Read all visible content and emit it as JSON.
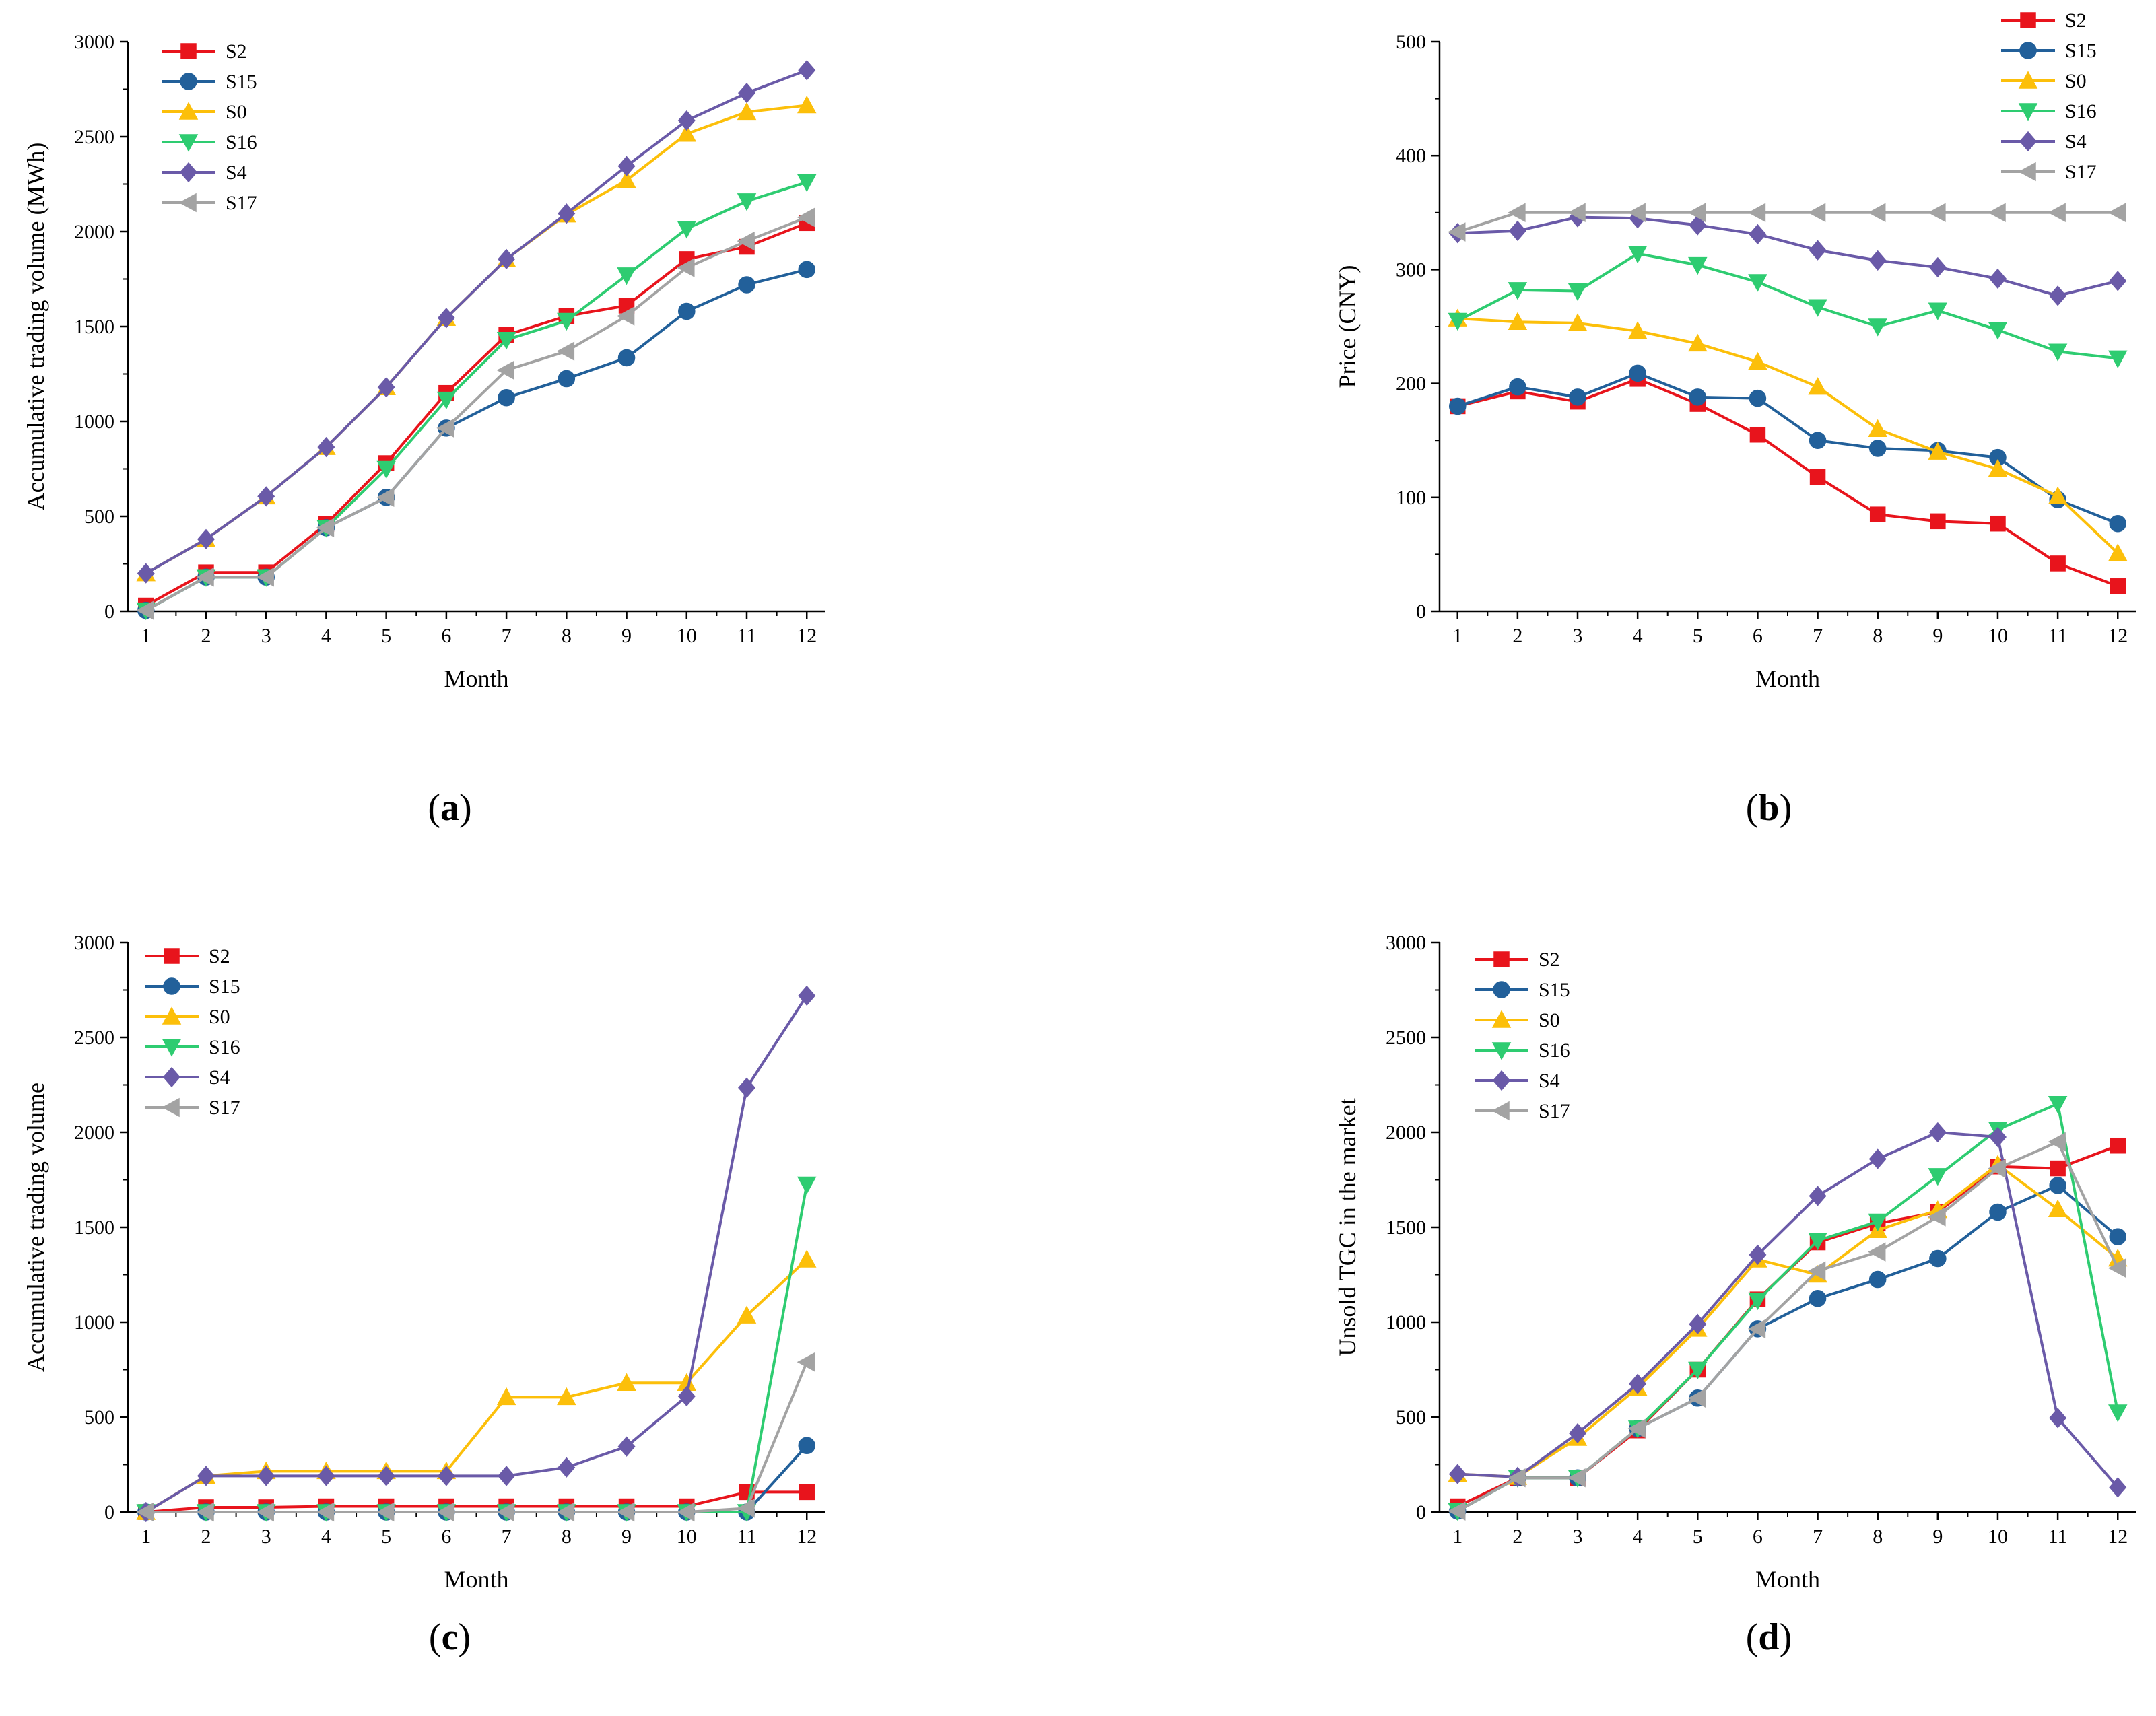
{
  "chart_data": [
    {
      "id": "a",
      "panel_label": "a",
      "type": "line",
      "xlabel": "Month",
      "ylabel": "Accumulative trading volume (MWh)",
      "ylim": [
        0,
        3000
      ],
      "yticks": [
        0,
        500,
        1000,
        1500,
        2000,
        2500,
        3000
      ],
      "x": [
        1,
        2,
        3,
        4,
        5,
        6,
        7,
        8,
        9,
        10,
        11,
        12
      ],
      "xticks": [
        "1",
        "2",
        "3",
        "4",
        "5",
        "6",
        "7",
        "8",
        "9",
        "10",
        "11",
        "12"
      ],
      "legend_position": "top-left",
      "series": [
        {
          "name": "S2",
          "color": "#e8141c",
          "marker": "square",
          "values": [
            30,
            205,
            205,
            460,
            780,
            1150,
            1455,
            1555,
            1610,
            1855,
            1920,
            2045
          ]
        },
        {
          "name": "S15",
          "color": "#22609a",
          "marker": "circle",
          "values": [
            5,
            180,
            180,
            440,
            600,
            965,
            1125,
            1225,
            1335,
            1580,
            1720,
            1800
          ]
        },
        {
          "name": "S0",
          "color": "#fcbf0a",
          "marker": "triangle-up",
          "values": [
            200,
            380,
            605,
            865,
            1180,
            1545,
            1855,
            2090,
            2270,
            2515,
            2630,
            2665
          ]
        },
        {
          "name": "S16",
          "color": "#2ecc71",
          "marker": "triangle-down",
          "values": [
            5,
            180,
            180,
            440,
            750,
            1115,
            1430,
            1530,
            1770,
            2015,
            2160,
            2260
          ]
        },
        {
          "name": "S4",
          "color": "#6a5aa8",
          "marker": "diamond",
          "values": [
            200,
            380,
            605,
            865,
            1180,
            1545,
            1855,
            2095,
            2345,
            2585,
            2730,
            2850
          ]
        },
        {
          "name": "S17",
          "color": "#a3a3a3",
          "marker": "triangle-left",
          "values": [
            5,
            180,
            180,
            440,
            600,
            965,
            1270,
            1370,
            1555,
            1810,
            1950,
            2075
          ]
        }
      ]
    },
    {
      "id": "b",
      "panel_label": "b",
      "type": "line",
      "xlabel": "Month",
      "ylabel": "Price (CNY)",
      "ylim": [
        0,
        500
      ],
      "yticks": [
        0,
        100,
        200,
        300,
        400,
        500
      ],
      "x": [
        1,
        2,
        3,
        4,
        5,
        6,
        7,
        8,
        9,
        10,
        11,
        12
      ],
      "xticks": [
        "1",
        "2",
        "3",
        "4",
        "5",
        "6",
        "7",
        "8",
        "9",
        "10",
        "11",
        "12"
      ],
      "legend_position": "top-right",
      "series": [
        {
          "name": "S2",
          "color": "#e8141c",
          "marker": "square",
          "values": [
            180,
            193,
            184,
            204,
            182,
            155,
            118,
            85,
            79,
            77,
            42,
            22
          ]
        },
        {
          "name": "S15",
          "color": "#22609a",
          "marker": "circle",
          "values": [
            180,
            197,
            188,
            209,
            188,
            187,
            150,
            143,
            141,
            135,
            98,
            77
          ]
        },
        {
          "name": "S0",
          "color": "#fcbf0a",
          "marker": "triangle-up",
          "values": [
            257,
            254,
            253,
            246,
            235,
            219,
            197,
            160,
            140,
            125,
            101,
            51
          ]
        },
        {
          "name": "S16",
          "color": "#2ecc71",
          "marker": "triangle-down",
          "values": [
            255,
            282,
            281,
            314,
            304,
            289,
            267,
            250,
            264,
            247,
            228,
            222
          ]
        },
        {
          "name": "S4",
          "color": "#6a5aa8",
          "marker": "diamond",
          "values": [
            332,
            334,
            346,
            345,
            339,
            331,
            317,
            308,
            302,
            292,
            277,
            290
          ]
        },
        {
          "name": "S17",
          "color": "#a3a3a3",
          "marker": "triangle-left",
          "values": [
            333,
            350,
            350,
            350,
            350,
            350,
            350,
            350,
            350,
            350,
            350,
            350
          ]
        }
      ]
    },
    {
      "id": "c",
      "panel_label": "c",
      "type": "line",
      "xlabel": "Month",
      "ylabel": "Accumulative trading volume",
      "ylim": [
        0,
        3000
      ],
      "yticks": [
        0,
        500,
        1000,
        1500,
        2000,
        2500,
        3000
      ],
      "x": [
        1,
        2,
        3,
        4,
        5,
        6,
        7,
        8,
        9,
        10,
        11,
        12
      ],
      "xticks": [
        "1",
        "2",
        "3",
        "4",
        "5",
        "6",
        "7",
        "8",
        "9",
        "10",
        "11",
        "12"
      ],
      "legend_position": "top-left",
      "series": [
        {
          "name": "S2",
          "color": "#e8141c",
          "marker": "square",
          "values": [
            0,
            25,
            25,
            30,
            30,
            30,
            30,
            30,
            30,
            30,
            105,
            105
          ]
        },
        {
          "name": "S15",
          "color": "#22609a",
          "marker": "circle",
          "values": [
            0,
            0,
            0,
            0,
            0,
            0,
            0,
            0,
            0,
            0,
            0,
            350
          ]
        },
        {
          "name": "S0",
          "color": "#fcbf0a",
          "marker": "triangle-up",
          "values": [
            0,
            190,
            215,
            215,
            215,
            215,
            605,
            605,
            680,
            680,
            1035,
            1330
          ]
        },
        {
          "name": "S16",
          "color": "#2ecc71",
          "marker": "triangle-down",
          "values": [
            0,
            0,
            0,
            0,
            0,
            0,
            0,
            0,
            0,
            0,
            0,
            1725
          ]
        },
        {
          "name": "S4",
          "color": "#6a5aa8",
          "marker": "diamond",
          "values": [
            0,
            190,
            190,
            190,
            190,
            190,
            190,
            235,
            345,
            610,
            2235,
            2720
          ]
        },
        {
          "name": "S17",
          "color": "#a3a3a3",
          "marker": "triangle-left",
          "values": [
            0,
            0,
            0,
            0,
            0,
            0,
            0,
            0,
            0,
            0,
            20,
            790
          ]
        }
      ]
    },
    {
      "id": "d",
      "panel_label": "d",
      "type": "line",
      "xlabel": "Month",
      "ylabel": "Unsold TGC in the market",
      "ylim": [
        0,
        3000
      ],
      "yticks": [
        0,
        500,
        1000,
        1500,
        2000,
        2500,
        3000
      ],
      "x": [
        1,
        2,
        3,
        4,
        5,
        6,
        7,
        8,
        9,
        10,
        11,
        12
      ],
      "xticks": [
        "1",
        "2",
        "3",
        "4",
        "5",
        "6",
        "7",
        "8",
        "9",
        "10",
        "11",
        "12"
      ],
      "legend_position": "top-left",
      "series": [
        {
          "name": "S2",
          "color": "#e8141c",
          "marker": "square",
          "values": [
            30,
            180,
            180,
            430,
            750,
            1120,
            1420,
            1520,
            1580,
            1820,
            1810,
            1930
          ]
        },
        {
          "name": "S15",
          "color": "#22609a",
          "marker": "circle",
          "values": [
            5,
            180,
            180,
            440,
            600,
            965,
            1125,
            1225,
            1335,
            1580,
            1720,
            1450
          ]
        },
        {
          "name": "S0",
          "color": "#fcbf0a",
          "marker": "triangle-up",
          "values": [
            200,
            185,
            390,
            655,
            965,
            1330,
            1250,
            1485,
            1590,
            1830,
            1595,
            1335
          ]
        },
        {
          "name": "S16",
          "color": "#2ecc71",
          "marker": "triangle-down",
          "values": [
            5,
            180,
            180,
            440,
            750,
            1115,
            1430,
            1530,
            1770,
            2015,
            2150,
            525
          ]
        },
        {
          "name": "S4",
          "color": "#6a5aa8",
          "marker": "diamond",
          "values": [
            200,
            185,
            415,
            675,
            990,
            1355,
            1665,
            1860,
            2000,
            1975,
            495,
            130
          ]
        },
        {
          "name": "S17",
          "color": "#a3a3a3",
          "marker": "triangle-left",
          "values": [
            5,
            180,
            180,
            440,
            600,
            965,
            1270,
            1370,
            1555,
            1810,
            1950,
            1285
          ]
        }
      ]
    }
  ]
}
